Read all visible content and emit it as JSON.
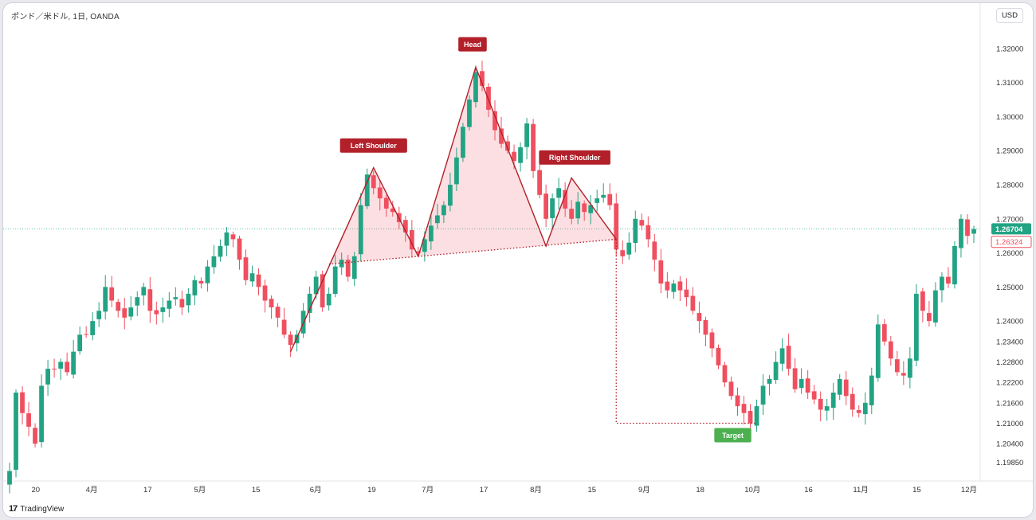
{
  "header": {
    "symbol": "ポンド／米ドル, 1日, OANDA",
    "currency": "USD"
  },
  "brand": {
    "logo": "17",
    "name": "TradingView"
  },
  "colors": {
    "up": "#22a383",
    "down": "#ef4f5f",
    "pattern": "#b2202a",
    "target": "#4caf50",
    "last": "#22a383",
    "second": "#ef4f5f"
  },
  "chart_data": {
    "type": "candlestick",
    "ylim": [
      1.194,
      1.33
    ],
    "price_ticks": [
      "1.32000",
      "1.31000",
      "1.30000",
      "1.29000",
      "1.28000",
      "1.27000",
      "1.26000",
      "1.25000",
      "1.24000",
      "1.23400",
      "1.22800",
      "1.22200",
      "1.21600",
      "1.21000",
      "1.20400",
      "1.19850"
    ],
    "x_ticks": [
      "20",
      "4月",
      "17",
      "5月",
      "15",
      "6月",
      "19",
      "7月",
      "17",
      "8月",
      "15",
      "9月",
      "18",
      "10月",
      "16",
      "11月",
      "15",
      "12月"
    ],
    "last_price": "1.26704",
    "second_price": "1.26324",
    "annotations": {
      "head": "Head",
      "left_shoulder": "Left Shoulder",
      "right_shoulder": "Right Shoulder",
      "target": "Target"
    },
    "pattern_points": [
      {
        "i": 44,
        "p": 1.231
      },
      {
        "i": 57,
        "p": 1.285
      },
      {
        "i": 64,
        "p": 1.259
      },
      {
        "i": 73,
        "p": 1.3145
      },
      {
        "i": 84,
        "p": 1.262
      },
      {
        "i": 88,
        "p": 1.282
      },
      {
        "i": 95,
        "p": 1.264
      }
    ],
    "neckline": [
      {
        "i": 50,
        "p": 1.2567
      },
      {
        "i": 95,
        "p": 1.264
      }
    ],
    "target_line": [
      {
        "i": 95,
        "p": 1.264
      },
      {
        "i": 95,
        "p": 1.21
      },
      {
        "i": 117,
        "p": 1.21
      }
    ],
    "closes": [
      1.196,
      1.219,
      1.213,
      1.209,
      1.204,
      1.221,
      1.226,
      1.226,
      1.228,
      1.225,
      1.231,
      1.236,
      1.236,
      1.24,
      1.243,
      1.25,
      1.246,
      1.243,
      1.241,
      1.244,
      1.247,
      1.25,
      1.243,
      1.242,
      1.244,
      1.246,
      1.247,
      1.244,
      1.248,
      1.252,
      1.251,
      1.256,
      1.259,
      1.262,
      1.266,
      1.264,
      1.258,
      1.252,
      1.254,
      1.25,
      1.246,
      1.244,
      1.241,
      1.236,
      1.233,
      1.236,
      1.243,
      1.248,
      1.253,
      1.244,
      1.248,
      1.256,
      1.258,
      1.253,
      1.259,
      1.274,
      1.283,
      1.279,
      1.276,
      1.273,
      1.272,
      1.269,
      1.266,
      1.261,
      1.26,
      1.264,
      1.268,
      1.271,
      1.274,
      1.28,
      1.288,
      1.297,
      1.305,
      1.313,
      1.309,
      1.302,
      1.296,
      1.292,
      1.29,
      1.287,
      1.291,
      1.298,
      1.284,
      1.277,
      1.27,
      1.276,
      1.279,
      1.273,
      1.27,
      1.275,
      1.272,
      1.274,
      1.276,
      1.277,
      1.274,
      1.261,
      1.259,
      1.263,
      1.27,
      1.268,
      1.264,
      1.258,
      1.251,
      1.249,
      1.251,
      1.249,
      1.247,
      1.243,
      1.24,
      1.236,
      1.232,
      1.227,
      1.222,
      1.218,
      1.215,
      1.213,
      1.21,
      1.215,
      1.221,
      1.223,
      1.228,
      1.232,
      1.226,
      1.22,
      1.223,
      1.219,
      1.217,
      1.214,
      1.215,
      1.219,
      1.223,
      1.218,
      1.214,
      1.213,
      1.216,
      1.224,
      1.239,
      1.234,
      1.229,
      1.225,
      1.224,
      1.229,
      1.248,
      1.243,
      1.24,
      1.249,
      1.253,
      1.251,
      1.262,
      1.27,
      1.265,
      1.267
    ]
  }
}
